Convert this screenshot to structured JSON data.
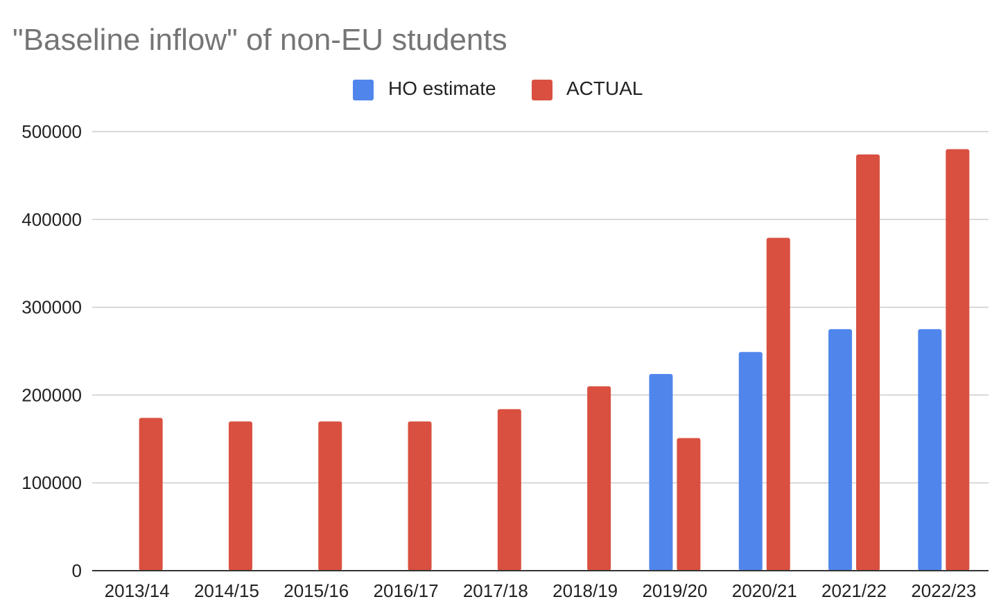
{
  "chart_data": {
    "type": "bar",
    "title": "\"Baseline inflow\" of non-EU students",
    "xlabel": "",
    "ylabel": "",
    "categories": [
      "2013/14",
      "2014/15",
      "2015/16",
      "2016/17",
      "2017/18",
      "2018/19",
      "2019/20",
      "2020/21",
      "2021/22",
      "2022/23"
    ],
    "series": [
      {
        "name": "HO estimate",
        "color": "#5086EC",
        "values": [
          null,
          null,
          null,
          null,
          null,
          null,
          224000,
          249000,
          275000,
          275000
        ]
      },
      {
        "name": "ACTUAL",
        "color": "#D95040",
        "values": [
          174000,
          170000,
          170000,
          170000,
          184000,
          210000,
          151000,
          379000,
          474000,
          480000
        ]
      }
    ],
    "ylim": [
      0,
      500000
    ],
    "yticks": [
      0,
      100000,
      200000,
      300000,
      400000,
      500000
    ],
    "ytick_labels": [
      "0",
      "100000",
      "200000",
      "300000",
      "400000",
      "500000"
    ],
    "grid": true,
    "legend_position": "top-center"
  }
}
